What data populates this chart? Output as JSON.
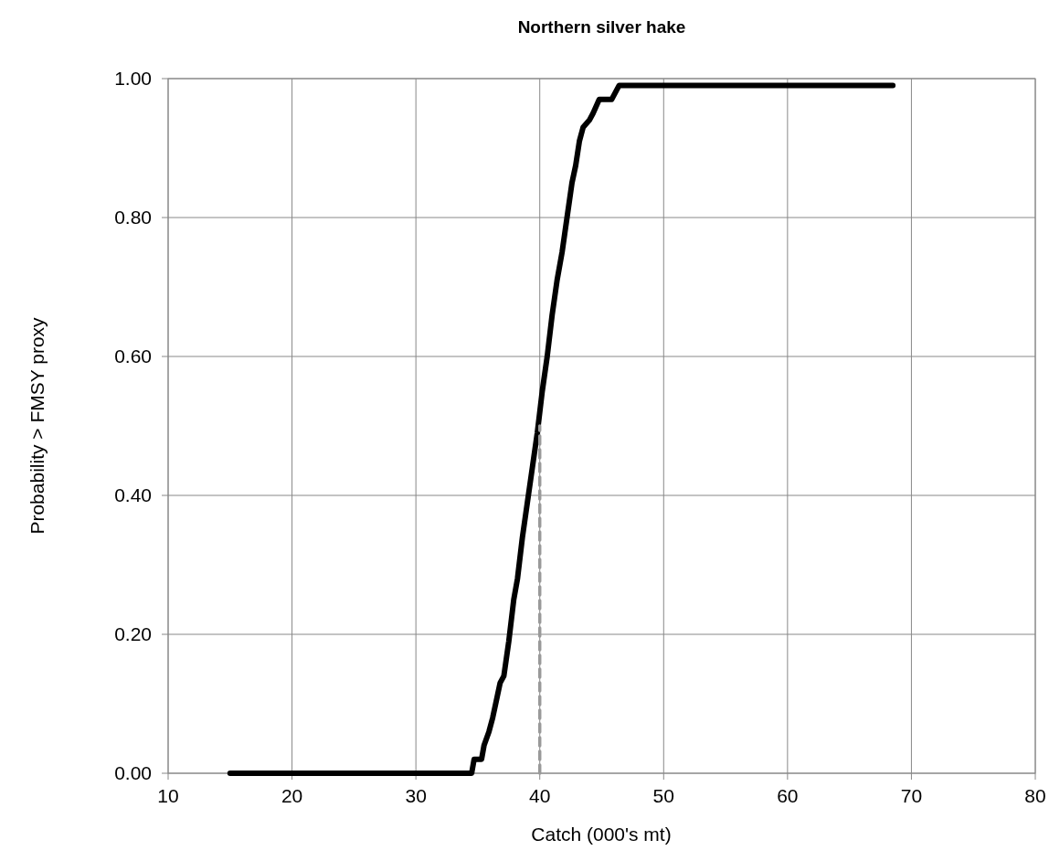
{
  "chart_data": {
    "type": "line",
    "title": "Northern silver hake",
    "xlabel": "Catch (000's mt)",
    "ylabel": "Probability  > FMSY proxy",
    "xlim": [
      10,
      80
    ],
    "xticks": [
      10,
      20,
      30,
      40,
      50,
      60,
      70,
      80
    ],
    "ylim": [
      0,
      1
    ],
    "yticks": [
      {
        "value": 0,
        "label": "0.00"
      },
      {
        "value": 0.2,
        "label": "0.20"
      },
      {
        "value": 0.4,
        "label": "0.40"
      },
      {
        "value": 0.6,
        "label": "0.60"
      },
      {
        "value": 0.8,
        "label": "0.80"
      },
      {
        "value": 1,
        "label": "1.00"
      }
    ],
    "grid": true,
    "series": [
      {
        "color": "#000000",
        "line_style": "solid",
        "x": [
          15,
          34.5,
          34.7,
          35.3,
          35.5,
          35.9,
          36.2,
          36.8,
          37.1,
          37.5,
          37.9,
          38.2,
          38.6,
          39,
          39.4,
          39.8,
          40.2,
          40.6,
          41,
          41.4,
          41.8,
          42.2,
          42.6,
          42.9,
          43.2,
          43.5,
          44,
          44.3,
          44.8,
          45.8,
          46.4,
          68.5
        ],
        "values": [
          0,
          0,
          0.02,
          0.02,
          0.04,
          0.06,
          0.08,
          0.13,
          0.14,
          0.19,
          0.25,
          0.28,
          0.34,
          0.39,
          0.44,
          0.49,
          0.55,
          0.6,
          0.66,
          0.71,
          0.75,
          0.8,
          0.85,
          0.875,
          0.91,
          0.93,
          0.94,
          0.95,
          0.97,
          0.97,
          0.99,
          0.99
        ]
      },
      {
        "color": "#999999",
        "line_style": "dashed",
        "x": [
          40,
          40
        ],
        "values": [
          0,
          0.5
        ]
      }
    ]
  }
}
